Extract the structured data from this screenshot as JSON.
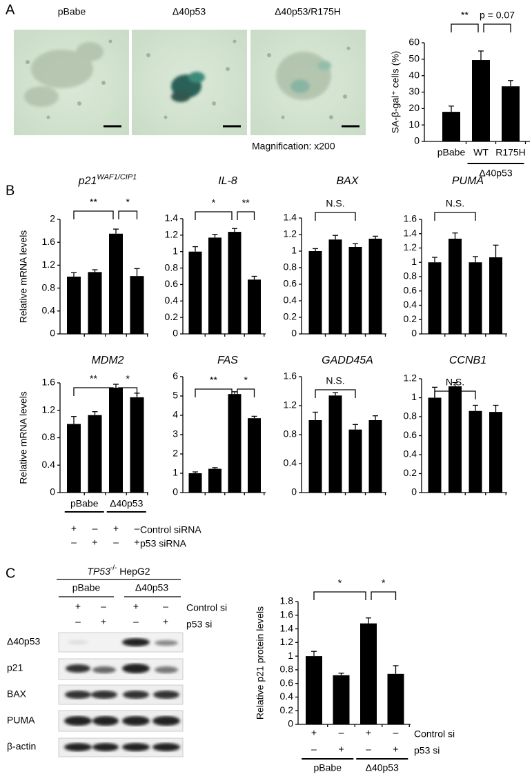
{
  "panels": [
    "A",
    "B",
    "C"
  ],
  "images": [
    {
      "label": "pBabe"
    },
    {
      "label": "Δ40p53"
    },
    {
      "label": "Δ40p53/R175H"
    }
  ],
  "magnification": "Magnification: x200",
  "western": {
    "cell_line": {
      "gene": "TP53",
      "genotype": "-/-",
      "name": "HepG2"
    },
    "groups": [
      "pBabe",
      "Δ40p53"
    ],
    "conditions": [
      {
        "label": "Control si",
        "marks": [
          "+",
          "–",
          "+",
          "–"
        ]
      },
      {
        "label": "p53 si",
        "marks": [
          "–",
          "+",
          "–",
          "+"
        ]
      }
    ],
    "rows": [
      "Δ40p53",
      "p21",
      "BAX",
      "PUMA",
      "β-actin"
    ]
  },
  "chart_data": [
    {
      "type": "bar",
      "ylabel": "SA-β-gal⁺ cells (%)",
      "categories": [
        "pBabe",
        "WT",
        "R175H"
      ],
      "groups": [
        "Δ40p53"
      ],
      "values": [
        18,
        49.5,
        33.5
      ],
      "errors": [
        3.5,
        5.5,
        3.5
      ],
      "ylim": [
        0,
        60
      ],
      "yticks": [
        0,
        10,
        20,
        30,
        40,
        50,
        60
      ],
      "annotations": [
        "**",
        "p = 0.07"
      ],
      "color": "#000000"
    },
    {
      "type": "bar",
      "title": "p21",
      "title_sup": "WAF1/CIP1",
      "ylabel": "Relative mRNA levels",
      "values": [
        1.0,
        1.08,
        1.75,
        1.01
      ],
      "errors": [
        0.07,
        0.04,
        0.08,
        0.13
      ],
      "ylim": [
        0,
        2
      ],
      "yticks": [
        0,
        0.4,
        0.8,
        1.2,
        1.6,
        2
      ],
      "annotations": [
        "**",
        "*"
      ],
      "color": "#000000"
    },
    {
      "type": "bar",
      "title": "IL-8",
      "values": [
        1.0,
        1.17,
        1.24,
        0.66
      ],
      "errors": [
        0.06,
        0.04,
        0.04,
        0.04
      ],
      "ylim": [
        0,
        1.4
      ],
      "yticks": [
        0,
        0.2,
        0.4,
        0.6,
        0.8,
        1,
        1.2,
        1.4
      ],
      "annotations": [
        "*",
        "**"
      ],
      "color": "#000000"
    },
    {
      "type": "bar",
      "title": "BAX",
      "values": [
        1.0,
        1.14,
        1.05,
        1.15
      ],
      "errors": [
        0.03,
        0.05,
        0.04,
        0.03
      ],
      "ylim": [
        0,
        1.4
      ],
      "yticks": [
        0,
        0.2,
        0.4,
        0.6,
        0.8,
        1,
        1.2,
        1.4
      ],
      "annotations": [
        "N.S."
      ],
      "color": "#000000"
    },
    {
      "type": "bar",
      "title": "PUMA",
      "values": [
        1.0,
        1.33,
        1.0,
        1.07
      ],
      "errors": [
        0.07,
        0.08,
        0.08,
        0.17
      ],
      "ylim": [
        0,
        1.6
      ],
      "yticks": [
        0,
        0.2,
        0.4,
        0.6,
        0.8,
        1,
        1.2,
        1.4,
        1.6
      ],
      "annotations": [
        "N.S."
      ],
      "color": "#000000"
    },
    {
      "type": "bar",
      "title": "MDM2",
      "ylabel": "Relative mRNA levels",
      "values": [
        1.0,
        1.13,
        1.53,
        1.39
      ],
      "errors": [
        0.11,
        0.05,
        0.05,
        0.06
      ],
      "ylim": [
        0,
        1.6
      ],
      "yticks": [
        0,
        0.4,
        0.8,
        1.2,
        1.6
      ],
      "annotations": [
        "**",
        "*"
      ],
      "groups": [
        "pBabe",
        "Δ40p53"
      ],
      "conditions": [
        {
          "label": "Control siRNA",
          "marks": [
            "+",
            "–",
            "+",
            "–"
          ]
        },
        {
          "label": "p53 siRNA",
          "marks": [
            "–",
            "+",
            "–",
            "+"
          ]
        }
      ],
      "color": "#000000"
    },
    {
      "type": "bar",
      "title": "FAS",
      "values": [
        1.0,
        1.23,
        5.1,
        3.85
      ],
      "errors": [
        0.07,
        0.06,
        0.12,
        0.1
      ],
      "ylim": [
        0,
        6
      ],
      "yticks": [
        0,
        1,
        2,
        3,
        4,
        5,
        6
      ],
      "annotations": [
        "**",
        "*"
      ],
      "color": "#000000"
    },
    {
      "type": "bar",
      "title": "GADD45A",
      "values": [
        1.0,
        1.34,
        0.87,
        1.0
      ],
      "errors": [
        0.11,
        0.04,
        0.07,
        0.06
      ],
      "ylim": [
        0,
        1.6
      ],
      "yticks": [
        0,
        0.4,
        0.8,
        1.2,
        1.6
      ],
      "annotations": [
        "N.S."
      ],
      "color": "#000000"
    },
    {
      "type": "bar",
      "title": "CCNB1",
      "values": [
        1.0,
        1.12,
        0.86,
        0.85
      ],
      "errors": [
        0.11,
        0.04,
        0.06,
        0.07
      ],
      "ylim": [
        0,
        1.2
      ],
      "yticks": [
        0,
        0.2,
        0.4,
        0.6,
        0.8,
        1,
        1.2
      ],
      "annotations": [
        "N.S."
      ],
      "color": "#000000"
    },
    {
      "type": "bar",
      "ylabel": "Relative p21 protein levels",
      "values": [
        1.0,
        0.72,
        1.48,
        0.74
      ],
      "errors": [
        0.07,
        0.03,
        0.08,
        0.12
      ],
      "ylim": [
        0,
        1.8
      ],
      "yticks": [
        0,
        0.2,
        0.4,
        0.6,
        0.8,
        1,
        1.2,
        1.4,
        1.6,
        1.8
      ],
      "annotations": [
        "*",
        "*"
      ],
      "groups": [
        "pBabe",
        "Δ40p53"
      ],
      "conditions": [
        {
          "label": "Control si",
          "marks": [
            "+",
            "–",
            "+",
            "–"
          ]
        },
        {
          "label": "p53 si",
          "marks": [
            "–",
            "+",
            "–",
            "+"
          ]
        }
      ],
      "color": "#000000"
    }
  ]
}
